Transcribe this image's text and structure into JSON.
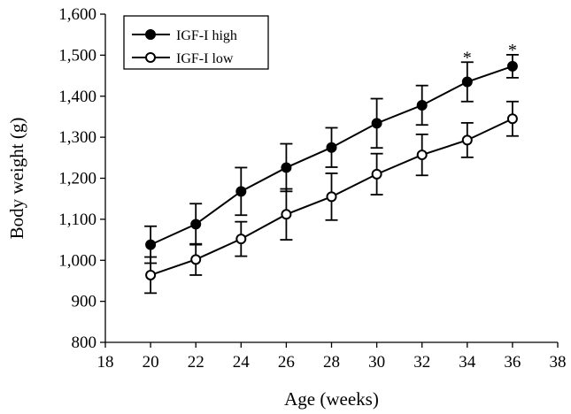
{
  "chart_data": {
    "type": "line",
    "xlabel": "Age (weeks)",
    "ylabel": "Body weight (g)",
    "xlim": [
      18,
      38
    ],
    "ylim": [
      800,
      1600
    ],
    "x_ticks": [
      18,
      20,
      22,
      24,
      26,
      28,
      30,
      32,
      34,
      36,
      38
    ],
    "y_ticks": [
      800,
      900,
      1000,
      1100,
      1200,
      1300,
      1400,
      1500,
      1600
    ],
    "y_tick_labels": [
      "800",
      "900",
      "1,000",
      "1,100",
      "1,200",
      "1,300",
      "1,400",
      "1,500",
      "1,600"
    ],
    "x": [
      20,
      22,
      24,
      26,
      28,
      30,
      32,
      34,
      36
    ],
    "series": [
      {
        "name": "IGF-I high",
        "marker": "filled-circle",
        "values": [
          1038,
          1088,
          1168,
          1226,
          1275,
          1334,
          1378,
          1435,
          1473
        ],
        "error": [
          45,
          50,
          58,
          58,
          48,
          60,
          48,
          48,
          28
        ]
      },
      {
        "name": "IGF-I low",
        "marker": "open-circle",
        "values": [
          964,
          1002,
          1052,
          1112,
          1155,
          1210,
          1257,
          1293,
          1345
        ],
        "error": [
          44,
          38,
          42,
          62,
          57,
          50,
          50,
          42,
          42
        ]
      }
    ],
    "annotations": [
      {
        "text": "*",
        "x": 34,
        "series": "IGF-I high"
      },
      {
        "text": "*",
        "x": 36,
        "series": "IGF-I high"
      }
    ],
    "legend_position": "top-left",
    "grid": false,
    "colors": {
      "line": "#000000",
      "background": "#ffffff"
    }
  }
}
